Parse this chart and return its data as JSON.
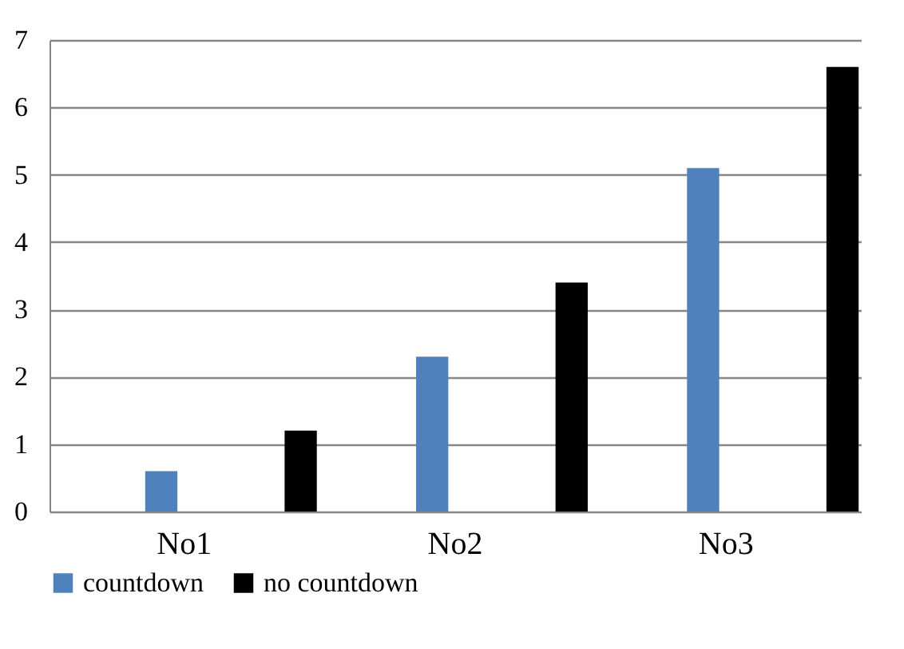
{
  "chart_data": {
    "type": "bar",
    "categories": [
      "No1",
      "No2",
      "No3"
    ],
    "series": [
      {
        "name": "countdown",
        "color": "#4f81bd",
        "values": [
          0.6,
          2.3,
          5.1
        ]
      },
      {
        "name": "no countdown",
        "color": "#000000",
        "values": [
          1.2,
          3.4,
          6.6
        ]
      }
    ],
    "ylim": [
      0,
      7
    ],
    "yticks": [
      0,
      1,
      2,
      3,
      4,
      5,
      6,
      7
    ],
    "grid": "y",
    "legend": "bottom"
  }
}
